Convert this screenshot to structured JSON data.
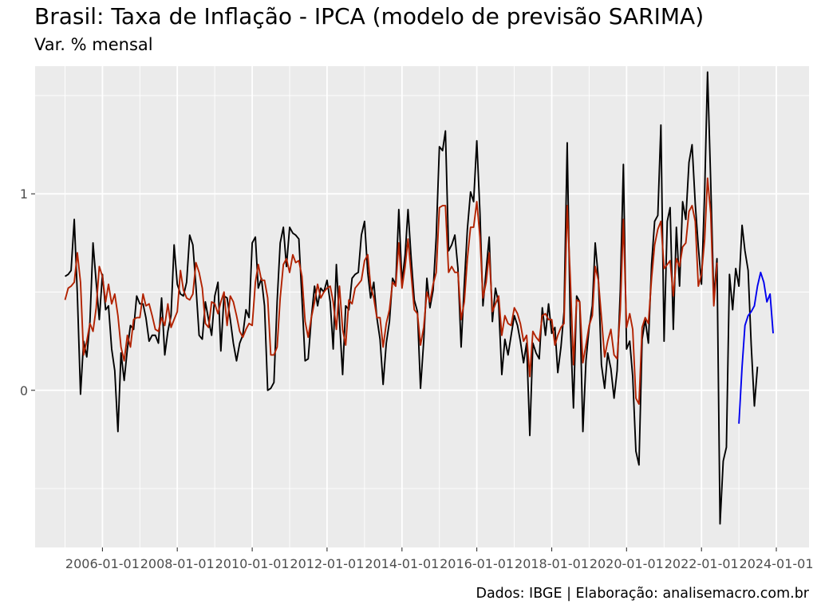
{
  "title": "Brasil: Taxa de Inflação - IPCA (modelo de previsão SARIMA)",
  "subtitle": "Var. % mensal",
  "caption": "Dados: IBGE | Elaboração: analisemacro.com.br",
  "colors": {
    "panel": "#ebebeb",
    "grid_major": "#ffffff",
    "observed": "#000000",
    "fitted": "#b22200",
    "forecast": "#0000ee"
  },
  "chart_data": {
    "type": "line",
    "title": "Brasil: Taxa de Inflação - IPCA (modelo de previsão SARIMA)",
    "subtitle": "Var. % mensal",
    "xlabel": "",
    "ylabel": "",
    "x_start": "2005-01",
    "x_frequency": "monthly",
    "xlim": [
      "2004-03-15",
      "2024-11-15"
    ],
    "ylim": [
      -0.8,
      1.65
    ],
    "x_ticks": [
      "2006-01-01",
      "2008-01-01",
      "2010-01-01",
      "2012-01-01",
      "2014-01-01",
      "2016-01-01",
      "2018-01-01",
      "2020-01-01",
      "2022-01-01",
      "2024-01-01"
    ],
    "y_ticks": [
      0,
      1
    ],
    "y_tick_labels": [
      "0",
      "1"
    ],
    "grid": true,
    "series": [
      {
        "key": "observed",
        "start": "2005-01",
        "values": [
          0.58,
          0.59,
          0.61,
          0.87,
          0.49,
          -0.02,
          0.25,
          0.17,
          0.35,
          0.75,
          0.55,
          0.36,
          0.59,
          0.41,
          0.43,
          0.21,
          0.1,
          -0.21,
          0.19,
          0.05,
          0.21,
          0.33,
          0.31,
          0.48,
          0.44,
          0.44,
          0.37,
          0.25,
          0.28,
          0.28,
          0.24,
          0.47,
          0.18,
          0.3,
          0.38,
          0.74,
          0.54,
          0.49,
          0.48,
          0.55,
          0.79,
          0.74,
          0.53,
          0.28,
          0.26,
          0.45,
          0.36,
          0.28,
          0.48,
          0.55,
          0.2,
          0.48,
          0.47,
          0.36,
          0.24,
          0.15,
          0.24,
          0.28,
          0.41,
          0.37,
          0.75,
          0.78,
          0.52,
          0.57,
          0.43,
          0.0,
          0.01,
          0.04,
          0.45,
          0.75,
          0.83,
          0.63,
          0.83,
          0.8,
          0.79,
          0.77,
          0.47,
          0.15,
          0.16,
          0.37,
          0.53,
          0.43,
          0.52,
          0.5,
          0.56,
          0.45,
          0.21,
          0.64,
          0.36,
          0.08,
          0.43,
          0.41,
          0.57,
          0.59,
          0.6,
          0.79,
          0.86,
          0.6,
          0.47,
          0.55,
          0.37,
          0.26,
          0.03,
          0.24,
          0.35,
          0.57,
          0.54,
          0.92,
          0.55,
          0.69,
          0.92,
          0.67,
          0.46,
          0.4,
          0.01,
          0.25,
          0.57,
          0.42,
          0.51,
          0.78,
          1.24,
          1.22,
          1.32,
          0.71,
          0.74,
          0.79,
          0.62,
          0.22,
          0.54,
          0.82,
          1.01,
          0.96,
          1.27,
          0.9,
          0.43,
          0.61,
          0.78,
          0.35,
          0.52,
          0.44,
          0.08,
          0.26,
          0.18,
          0.28,
          0.38,
          0.33,
          0.25,
          0.14,
          0.24,
          -0.23,
          0.24,
          0.19,
          0.16,
          0.42,
          0.28,
          0.44,
          0.29,
          0.32,
          0.09,
          0.22,
          0.4,
          1.26,
          0.33,
          -0.09,
          0.48,
          0.45,
          -0.21,
          0.15,
          0.32,
          0.43,
          0.75,
          0.57,
          0.13,
          0.01,
          0.19,
          0.11,
          -0.04,
          0.1,
          0.51,
          1.15,
          0.21,
          0.25,
          0.07,
          -0.31,
          -0.38,
          0.26,
          0.36,
          0.24,
          0.64,
          0.86,
          0.89,
          1.35,
          0.25,
          0.86,
          0.93,
          0.31,
          0.83,
          0.53,
          0.96,
          0.87,
          1.16,
          1.25,
          0.95,
          0.73,
          0.54,
          1.01,
          1.62,
          1.06,
          0.47,
          0.67,
          -0.68,
          -0.36,
          -0.29,
          0.59,
          0.41,
          0.62,
          0.53,
          0.84,
          0.71,
          0.61,
          0.23,
          -0.08,
          0.12
        ]
      },
      {
        "key": "fitted",
        "start": "2005-01",
        "values": [
          0.46,
          0.52,
          0.53,
          0.55,
          0.7,
          0.55,
          0.18,
          0.25,
          0.34,
          0.3,
          0.42,
          0.63,
          0.58,
          0.45,
          0.54,
          0.44,
          0.49,
          0.38,
          0.22,
          0.15,
          0.28,
          0.22,
          0.36,
          0.37,
          0.37,
          0.49,
          0.43,
          0.44,
          0.38,
          0.31,
          0.3,
          0.37,
          0.33,
          0.44,
          0.32,
          0.36,
          0.4,
          0.61,
          0.51,
          0.47,
          0.46,
          0.49,
          0.65,
          0.6,
          0.52,
          0.34,
          0.32,
          0.45,
          0.44,
          0.39,
          0.45,
          0.5,
          0.33,
          0.48,
          0.45,
          0.38,
          0.3,
          0.27,
          0.31,
          0.34,
          0.33,
          0.55,
          0.64,
          0.56,
          0.56,
          0.47,
          0.18,
          0.18,
          0.22,
          0.47,
          0.64,
          0.67,
          0.6,
          0.69,
          0.65,
          0.66,
          0.58,
          0.35,
          0.27,
          0.37,
          0.45,
          0.54,
          0.47,
          0.5,
          0.52,
          0.53,
          0.45,
          0.31,
          0.53,
          0.31,
          0.23,
          0.46,
          0.44,
          0.52,
          0.54,
          0.56,
          0.66,
          0.69,
          0.53,
          0.47,
          0.37,
          0.37,
          0.22,
          0.34,
          0.41,
          0.55,
          0.53,
          0.75,
          0.52,
          0.63,
          0.77,
          0.59,
          0.41,
          0.39,
          0.23,
          0.32,
          0.5,
          0.45,
          0.54,
          0.6,
          0.93,
          0.94,
          0.94,
          0.6,
          0.63,
          0.6,
          0.6,
          0.36,
          0.45,
          0.67,
          0.83,
          0.83,
          0.96,
          0.78,
          0.47,
          0.55,
          0.7,
          0.4,
          0.44,
          0.48,
          0.28,
          0.38,
          0.34,
          0.33,
          0.42,
          0.39,
          0.34,
          0.25,
          0.28,
          0.07,
          0.3,
          0.27,
          0.25,
          0.38,
          0.39,
          0.36,
          0.36,
          0.23,
          0.28,
          0.32,
          0.34,
          0.94,
          0.57,
          0.13,
          0.46,
          0.45,
          0.14,
          0.23,
          0.33,
          0.38,
          0.63,
          0.56,
          0.37,
          0.17,
          0.25,
          0.31,
          0.18,
          0.16,
          0.41,
          0.87,
          0.32,
          0.39,
          0.31,
          -0.04,
          -0.07,
          0.32,
          0.37,
          0.34,
          0.57,
          0.74,
          0.82,
          0.86,
          0.62,
          0.64,
          0.66,
          0.48,
          0.67,
          0.63,
          0.73,
          0.75,
          0.91,
          0.94,
          0.86,
          0.53,
          0.59,
          0.77,
          1.08,
          0.9,
          0.43,
          0.65
        ]
      },
      {
        "key": "forecast",
        "start": "2023-01",
        "values": [
          -0.17,
          0.12,
          0.33,
          0.38,
          0.4,
          0.43,
          0.53,
          0.6,
          0.55,
          0.45,
          0.49,
          0.29
        ]
      }
    ]
  }
}
